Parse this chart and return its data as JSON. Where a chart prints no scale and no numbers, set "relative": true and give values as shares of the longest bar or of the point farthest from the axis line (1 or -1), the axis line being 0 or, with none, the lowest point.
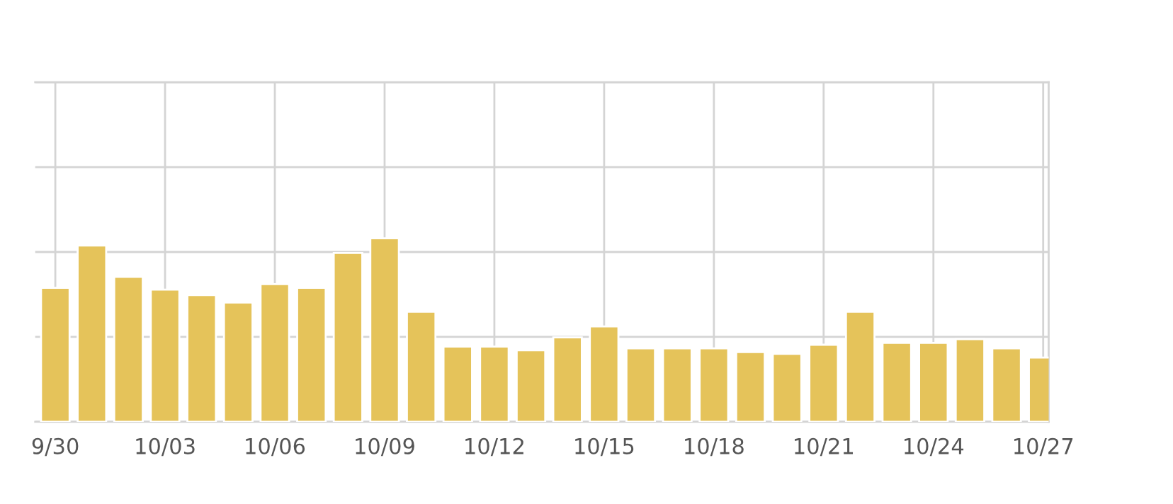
{
  "chart_data": {
    "type": "bar",
    "relative": true,
    "grid": true,
    "color": "#e5c35a",
    "categories": [
      "9/30",
      null,
      null,
      "10/03",
      null,
      null,
      "10/06",
      null,
      null,
      "10/09",
      null,
      null,
      "10/12",
      null,
      null,
      "10/15",
      null,
      null,
      "10/18",
      null,
      null,
      "10/21",
      null,
      null,
      "10/24",
      null,
      null,
      "10/27"
    ],
    "values": [
      0.73,
      0.96,
      0.79,
      0.72,
      0.69,
      0.65,
      0.75,
      0.73,
      0.92,
      1,
      0.6,
      0.41,
      0.41,
      0.39,
      0.46,
      0.52,
      0.4,
      0.4,
      0.4,
      0.38,
      0.37,
      0.42,
      0.6,
      0.43,
      0.43,
      0.45,
      0.4,
      0.35
    ]
  }
}
